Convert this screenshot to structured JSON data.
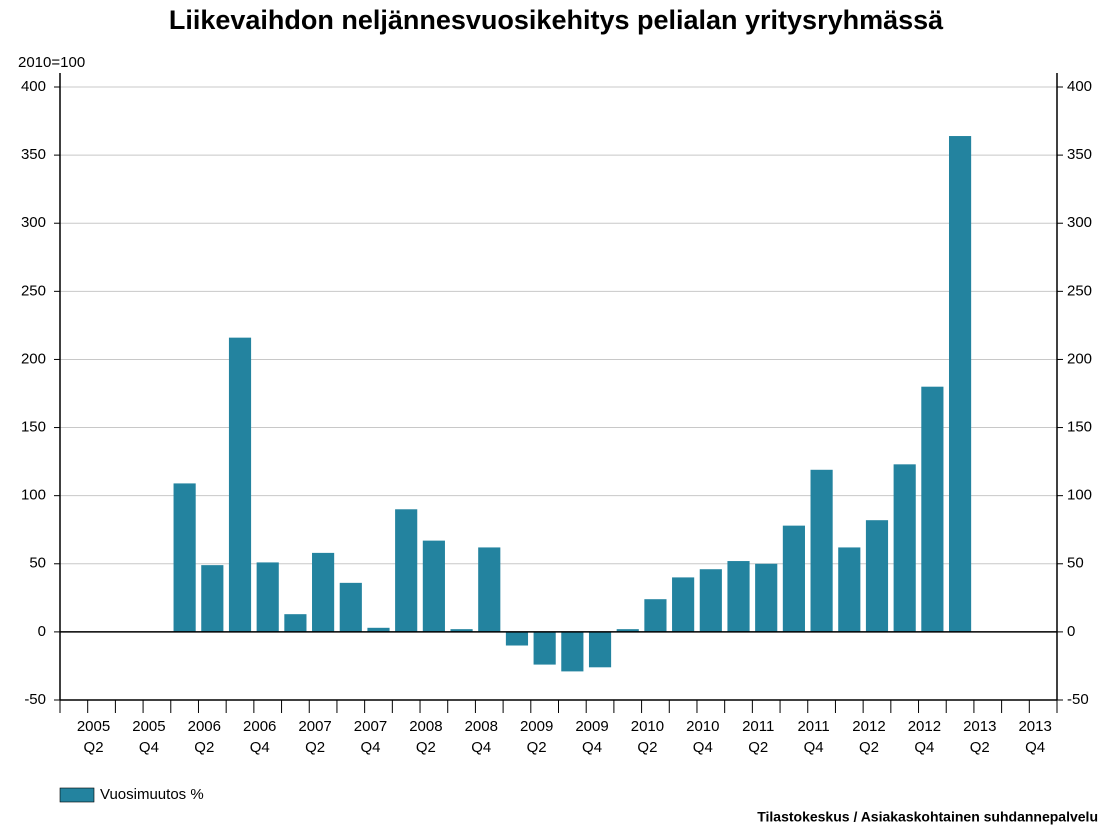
{
  "chart_data": {
    "type": "bar",
    "title": "Liikevaihdon neljännesvuosikehitys pelialan yritysryhmässä",
    "y_axis_label": "2010=100",
    "source": "Tilastokeskus / Asiakaskohtainen suhdannepalvelu",
    "categories": [
      null,
      [
        "2005",
        "Q2"
      ],
      null,
      [
        "2005",
        "Q4"
      ],
      null,
      [
        "2006",
        "Q2"
      ],
      null,
      [
        "2006",
        "Q4"
      ],
      null,
      [
        "2007",
        "Q2"
      ],
      null,
      [
        "2007",
        "Q4"
      ],
      null,
      [
        "2008",
        "Q2"
      ],
      null,
      [
        "2008",
        "Q4"
      ],
      null,
      [
        "2009",
        "Q2"
      ],
      null,
      [
        "2009",
        "Q4"
      ],
      null,
      [
        "2010",
        "Q2"
      ],
      null,
      [
        "2010",
        "Q4"
      ],
      null,
      [
        "2011",
        "Q2"
      ],
      null,
      [
        "2011",
        "Q4"
      ],
      null,
      [
        "2012",
        "Q2"
      ],
      null,
      [
        "2012",
        "Q4"
      ],
      null,
      [
        "2013",
        "Q2"
      ],
      null,
      [
        "2013",
        "Q4"
      ]
    ],
    "series": [
      {
        "name": "Vuosimuutos %",
        "color": "#23839f",
        "values": [
          null,
          null,
          null,
          null,
          109,
          49,
          216,
          51,
          13,
          58,
          36,
          3,
          90,
          67,
          2,
          62,
          -10,
          -24,
          -29,
          -26,
          2,
          24,
          40,
          46,
          52,
          50,
          78,
          119,
          62,
          82,
          123,
          180,
          364,
          null,
          null,
          null
        ]
      }
    ],
    "ylim": [
      -50,
      400
    ],
    "yticks": [
      -50,
      0,
      50,
      100,
      150,
      200,
      250,
      300,
      350,
      400
    ],
    "grid": true,
    "legend": "bottom-left"
  }
}
